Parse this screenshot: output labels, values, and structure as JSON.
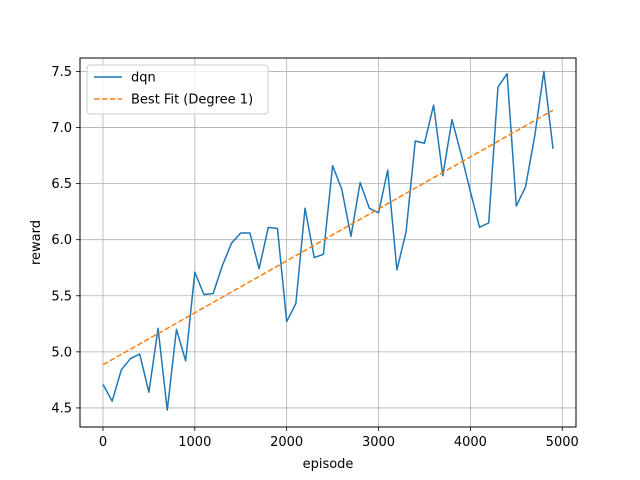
{
  "chart_data": {
    "type": "line",
    "xlabel": "episode",
    "ylabel": "reward",
    "xlim": [
      -250,
      5150
    ],
    "ylim": [
      4.33,
      7.62
    ],
    "xticks": [
      0,
      1000,
      2000,
      3000,
      4000,
      5000
    ],
    "xtick_labels": [
      "0",
      "1000",
      "2000",
      "3000",
      "4000",
      "5000"
    ],
    "yticks": [
      4.5,
      5.0,
      5.5,
      6.0,
      6.5,
      7.0,
      7.5
    ],
    "ytick_labels": [
      "4.5",
      "5.0",
      "5.5",
      "6.0",
      "6.5",
      "7.0",
      "7.5"
    ],
    "grid": true,
    "legend_position": "top-left",
    "series": [
      {
        "name": "dqn",
        "color": "#1f77b4",
        "style": "solid",
        "x": [
          0,
          100,
          200,
          300,
          400,
          500,
          600,
          700,
          800,
          900,
          1000,
          1100,
          1200,
          1300,
          1400,
          1500,
          1600,
          1700,
          1800,
          1900,
          2000,
          2100,
          2200,
          2300,
          2400,
          2500,
          2600,
          2700,
          2800,
          2900,
          3000,
          3100,
          3200,
          3300,
          3400,
          3500,
          3600,
          3700,
          3800,
          3900,
          4000,
          4100,
          4200,
          4300,
          4400,
          4500,
          4600,
          4700,
          4800,
          4900
        ],
        "y": [
          4.71,
          4.56,
          4.84,
          4.94,
          4.98,
          4.64,
          5.21,
          4.48,
          5.2,
          4.92,
          5.71,
          5.51,
          5.52,
          5.77,
          5.97,
          6.06,
          6.06,
          5.74,
          6.11,
          6.1,
          5.27,
          5.43,
          6.28,
          5.84,
          5.87,
          6.66,
          6.45,
          6.03,
          6.51,
          6.28,
          6.24,
          6.62,
          5.73,
          6.07,
          6.88,
          6.86,
          7.2,
          6.57,
          7.07,
          6.76,
          6.43,
          6.11,
          6.15,
          7.36,
          7.48,
          6.3,
          6.47,
          6.92,
          7.5,
          6.81
        ]
      },
      {
        "name": "Best Fit (Degree 1)",
        "color": "#ff7f0e",
        "style": "dashed",
        "x": [
          0,
          4900
        ],
        "y": [
          4.885,
          7.155
        ]
      }
    ]
  }
}
